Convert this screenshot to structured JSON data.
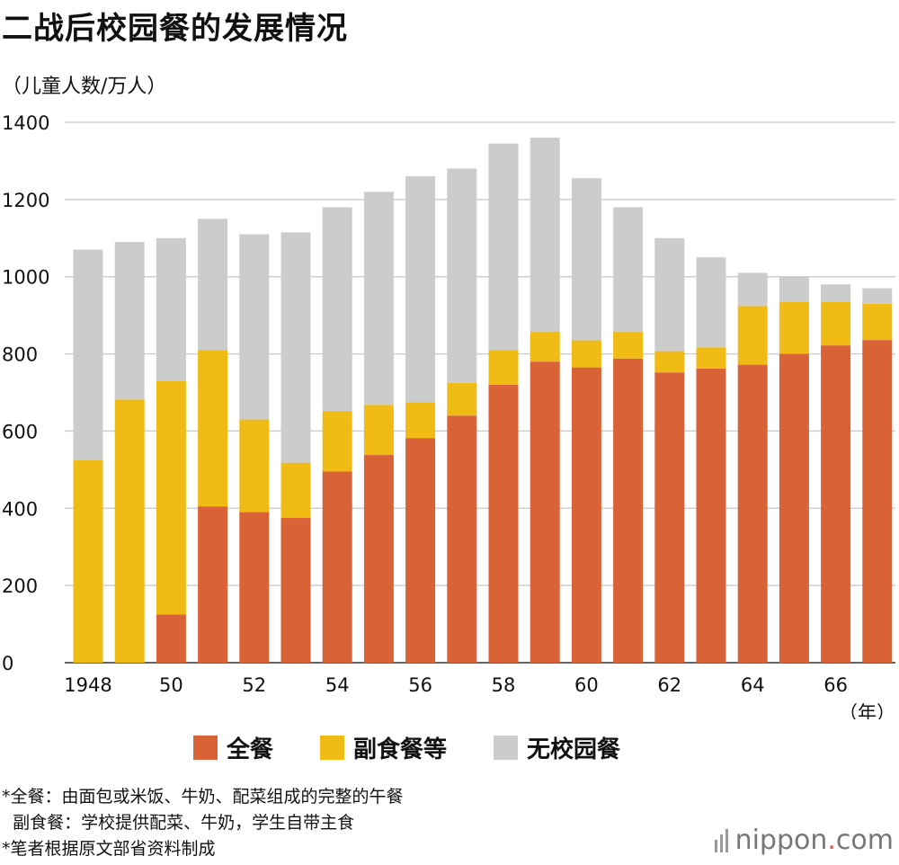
{
  "title": "二战后校园餐的发展情况",
  "unit_label": "（儿童人数/万人）",
  "chart_data": {
    "type": "bar",
    "stacked": true,
    "title": "二战后校园餐的发展情况",
    "ylabel": "（儿童人数/万人）",
    "xlabel": "（年）",
    "ylim": [
      0,
      1400
    ],
    "yticks": [
      "0",
      "200",
      "400",
      "600",
      "800",
      "1000",
      "1200",
      "1400"
    ],
    "categories": [
      "1948",
      "1949",
      "1950",
      "1951",
      "1952",
      "1953",
      "1954",
      "1955",
      "1956",
      "1957",
      "1958",
      "1959",
      "1960",
      "1961",
      "1962",
      "1963",
      "1964",
      "1965",
      "1966",
      "1967"
    ],
    "xtick_labels": [
      "1948",
      "",
      "50",
      "",
      "52",
      "",
      "54",
      "",
      "56",
      "",
      "58",
      "",
      "60",
      "",
      "62",
      "",
      "64",
      "",
      "66",
      ""
    ],
    "series": [
      {
        "name": "全餐",
        "color": "#d96236",
        "values": [
          0,
          0,
          125,
          405,
          390,
          375,
          495,
          538,
          582,
          640,
          720,
          780,
          765,
          788,
          752,
          762,
          772,
          800,
          822,
          836
        ]
      },
      {
        "name": "副食餐等",
        "color": "#f0bb15",
        "values": [
          525,
          682,
          605,
          405,
          240,
          143,
          157,
          130,
          93,
          85,
          90,
          78,
          70,
          70,
          55,
          55,
          152,
          135,
          113,
          94
        ]
      },
      {
        "name": "无校园餐",
        "color": "#cccccc",
        "values": [
          545,
          408,
          370,
          340,
          480,
          597,
          528,
          552,
          585,
          555,
          535,
          502,
          420,
          322,
          293,
          233,
          86,
          65,
          45,
          40
        ]
      }
    ]
  },
  "legend": [
    {
      "label": "全餐",
      "color": "#d96236"
    },
    {
      "label": "副食餐等",
      "color": "#f0bb15"
    },
    {
      "label": "无校园餐",
      "color": "#cccccc"
    }
  ],
  "notes": [
    "*全餐：由面包或米饭、牛奶、配菜组成的完整的午餐",
    "  副食餐：学校提供配菜、牛奶，学生自带主食",
    "*笔者根据原文部省资料制成"
  ],
  "logo": {
    "name": "nippon",
    "sep": ".",
    "tld": "com"
  }
}
